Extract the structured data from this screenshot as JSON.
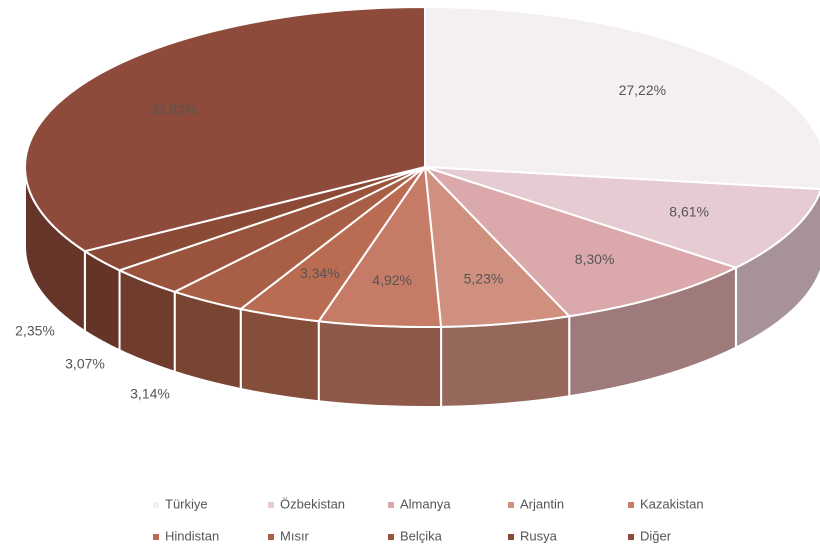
{
  "chart_data": {
    "type": "pie3d",
    "categories": [
      "Türkiye",
      "Özbekistan",
      "Almanya",
      "Arjantin",
      "Kazakistan",
      "Hindistan",
      "Mısır",
      "Belçika",
      "Rusya",
      "Diğer"
    ],
    "values": [
      27.22,
      8.61,
      8.3,
      5.23,
      4.92,
      3.34,
      3.14,
      3.07,
      2.35,
      33.82
    ],
    "value_labels": [
      "27,22%",
      "8,61%",
      "8,30%",
      "5,23%",
      "4,92%",
      "3,34%",
      "3,14%",
      "3,07%",
      "2,35%",
      "33,82%"
    ],
    "colors": [
      "#f4eff1",
      "#e6cbd3",
      "#dba9ab",
      "#d09080",
      "#c57b66",
      "#b96c52",
      "#a95f46",
      "#9a543e",
      "#8b4a36",
      "#8e4a3a"
    ],
    "legend": "bottom"
  }
}
